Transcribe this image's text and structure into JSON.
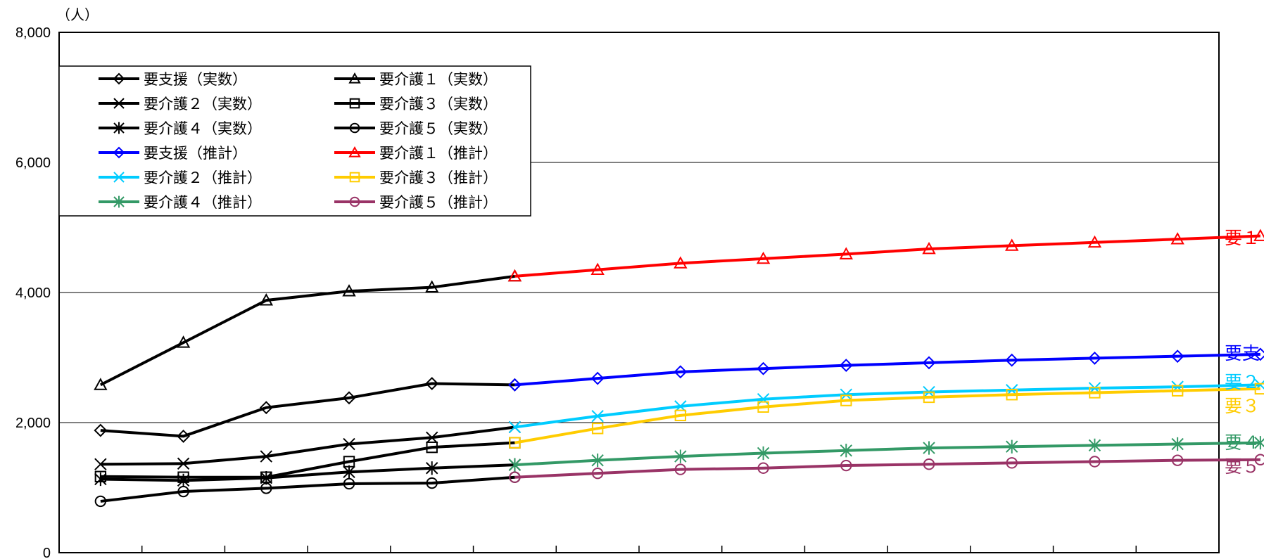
{
  "chart_data": {
    "type": "line",
    "ylabel": "（人）",
    "ylim": [
      0,
      8000
    ],
    "y_ticks": [
      "0",
      "2,000",
      "4,000",
      "6,000",
      "8,000"
    ],
    "y_tick_values": [
      0,
      2000,
      4000,
      6000,
      8000
    ],
    "gridlines": [
      2000,
      4000,
      6000
    ],
    "x_count": 14,
    "x_tick_labels": [],
    "legend_placement": "top-left",
    "series": [
      {
        "name": "要支援（実数）",
        "color": "#000000",
        "marker": "diamond",
        "start": 0,
        "values": [
          1880,
          1790,
          2230,
          2380,
          2600,
          2580
        ]
      },
      {
        "name": "要介護１（実数）",
        "color": "#000000",
        "marker": "triangle",
        "start": 0,
        "values": [
          2580,
          3230,
          3880,
          4020,
          4080,
          4250
        ]
      },
      {
        "name": "要介護２（実数）",
        "color": "#000000",
        "marker": "x",
        "start": 0,
        "values": [
          1360,
          1370,
          1480,
          1670,
          1770,
          1930
        ]
      },
      {
        "name": "要介護３（実数）",
        "color": "#000000",
        "marker": "square",
        "start": 0,
        "values": [
          1170,
          1160,
          1160,
          1400,
          1620,
          1690
        ]
      },
      {
        "name": "要介護４（実数）",
        "color": "#000000",
        "marker": "asterisk",
        "start": 0,
        "values": [
          1130,
          1110,
          1150,
          1240,
          1300,
          1350
        ]
      },
      {
        "name": "要介護５（実数）",
        "color": "#000000",
        "marker": "circle",
        "start": 0,
        "values": [
          790,
          940,
          990,
          1060,
          1070,
          1160
        ]
      },
      {
        "name": "要支援（推計）",
        "color": "#0000FF",
        "marker": "diamond",
        "start": 5,
        "values": [
          2580,
          2680,
          2780,
          2830,
          2880,
          2920,
          2960,
          2990,
          3020,
          3050
        ]
      },
      {
        "name": "要介護１（推計）",
        "color": "#FF0000",
        "marker": "triangle",
        "start": 5,
        "values": [
          4250,
          4350,
          4450,
          4520,
          4590,
          4670,
          4720,
          4770,
          4820,
          4870
        ]
      },
      {
        "name": "要介護２（推計）",
        "color": "#00CCFF",
        "marker": "x",
        "start": 5,
        "values": [
          1930,
          2100,
          2250,
          2360,
          2430,
          2470,
          2500,
          2530,
          2550,
          2580
        ]
      },
      {
        "name": "要介護３（推計）",
        "color": "#FFCC00",
        "marker": "square",
        "start": 5,
        "values": [
          1690,
          1910,
          2110,
          2240,
          2340,
          2390,
          2430,
          2460,
          2490,
          2520
        ]
      },
      {
        "name": "要介護４（推計）",
        "color": "#339966",
        "marker": "asterisk",
        "start": 5,
        "values": [
          1350,
          1420,
          1480,
          1530,
          1570,
          1610,
          1630,
          1650,
          1670,
          1690
        ]
      },
      {
        "name": "要介護５（推計）",
        "color": "#993366",
        "marker": "circle",
        "start": 5,
        "values": [
          1160,
          1220,
          1280,
          1300,
          1340,
          1360,
          1380,
          1400,
          1420,
          1430
        ]
      }
    ],
    "legend_rows": [
      [
        "要支援（実数）",
        "要介護１（実数）"
      ],
      [
        "要介護２（実数）",
        "要介護３（実数）"
      ],
      [
        "要介護４（実数）",
        "要介護５（実数）"
      ],
      [
        "要支援（推計）",
        "要介護１（推計）"
      ],
      [
        "要介護２（推計）",
        "要介護３（推計）"
      ],
      [
        "要介護４（推計）",
        "要介護５（推計）"
      ]
    ],
    "annotations": [
      {
        "text": "要１",
        "color": "#FF0000",
        "anchor_value": 4870
      },
      {
        "text": "要支",
        "color": "#0000FF",
        "anchor_value": 3050
      },
      {
        "text": "要２",
        "color": "#00CCFF",
        "anchor_value": 2580
      },
      {
        "text": "要３",
        "color": "#FFCC00",
        "anchor_value": 2520
      },
      {
        "text": "要４",
        "color": "#339966",
        "anchor_value": 1690
      },
      {
        "text": "要５",
        "color": "#993366",
        "anchor_value": 1430
      }
    ]
  }
}
